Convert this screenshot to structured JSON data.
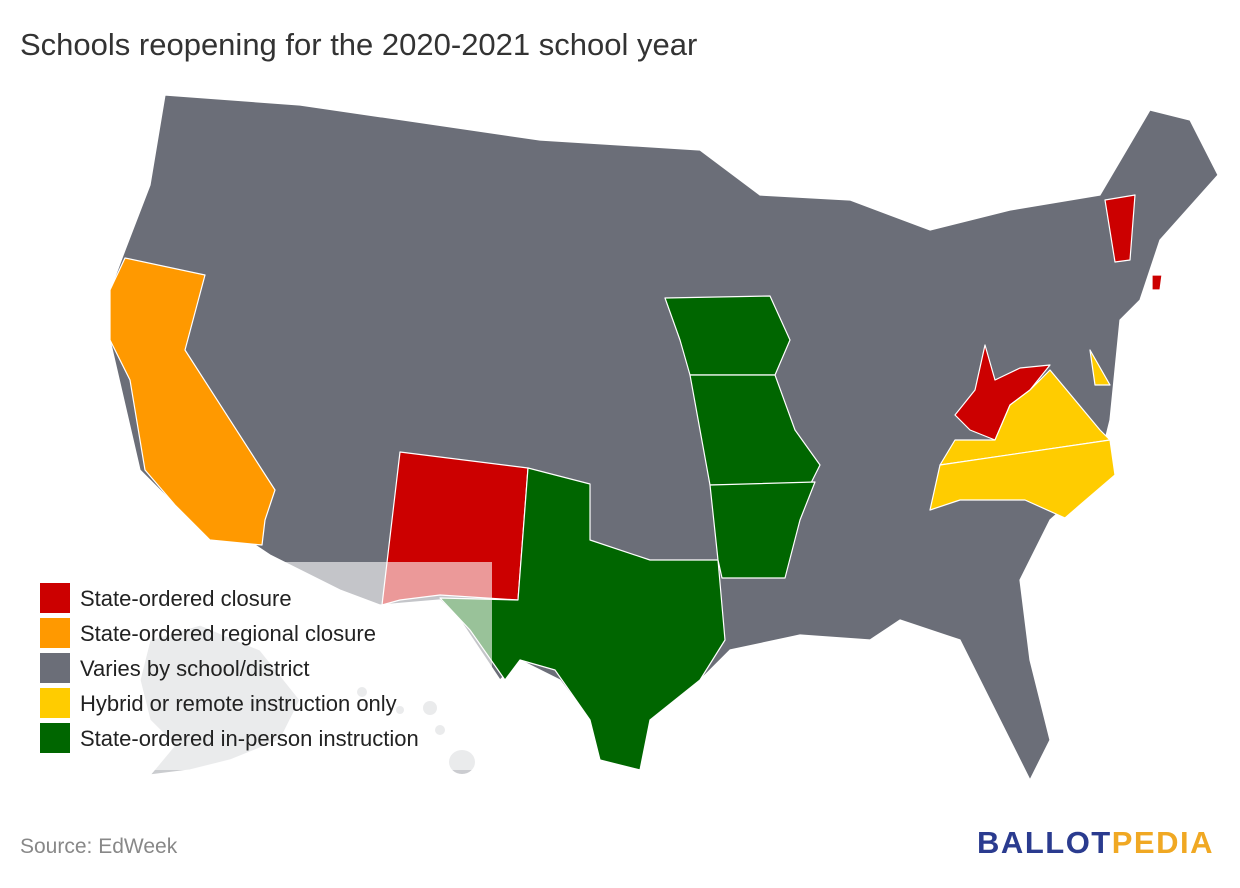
{
  "title": "Schools reopening for the 2020-2021 school year",
  "legend": [
    {
      "label": "State-ordered closure",
      "color": "#cc0000"
    },
    {
      "label": "State-ordered regional closure",
      "color": "#ff9900"
    },
    {
      "label": "Varies by school/district",
      "color": "#6b6e78"
    },
    {
      "label": "Hybrid or remote instruction only",
      "color": "#ffcc00"
    },
    {
      "label": "State-ordered in-person instruction",
      "color": "#006600"
    }
  ],
  "source": "Source: EdWeek",
  "logo": [
    "BALLOT",
    "PEDIA"
  ]
}
